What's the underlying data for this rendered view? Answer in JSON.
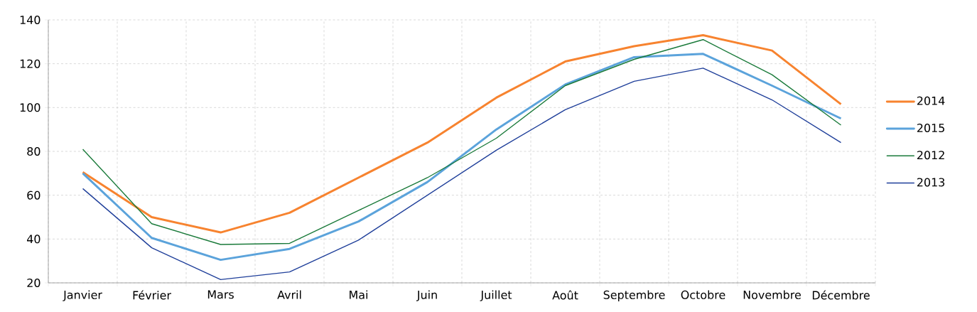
{
  "chart_data": {
    "type": "line",
    "categories": [
      "Janvier",
      "Février",
      "Mars",
      "Avril",
      "Mai",
      "Juin",
      "Juillet",
      "Août",
      "Septembre",
      "Octobre",
      "Novembre",
      "Décembre"
    ],
    "series": [
      {
        "name": "2014",
        "color": "#f7832f",
        "values": [
          70.5,
          50,
          43,
          52,
          68,
          84,
          104.5,
          121,
          128,
          133,
          126,
          101.5
        ]
      },
      {
        "name": "2015",
        "color": "#5ba3db",
        "values": [
          70,
          40.5,
          30.5,
          35.5,
          48,
          66,
          90,
          110.5,
          123,
          124.5,
          110,
          95
        ]
      },
      {
        "name": "2012",
        "color": "#1a7a3a",
        "values": [
          81,
          47,
          37.5,
          38,
          53,
          68,
          86,
          110,
          122,
          131,
          115,
          92
        ]
      },
      {
        "name": "2013",
        "color": "#1f3f9a",
        "values": [
          63,
          36,
          21.5,
          25,
          39.5,
          60,
          80.5,
          99,
          112,
          118,
          103.5,
          84
        ]
      }
    ],
    "ylim": [
      20,
      140
    ],
    "yticks": [
      20,
      40,
      60,
      80,
      100,
      120,
      140
    ],
    "grid": true,
    "legend": "right",
    "marker": "none",
    "line_style": "solid"
  }
}
